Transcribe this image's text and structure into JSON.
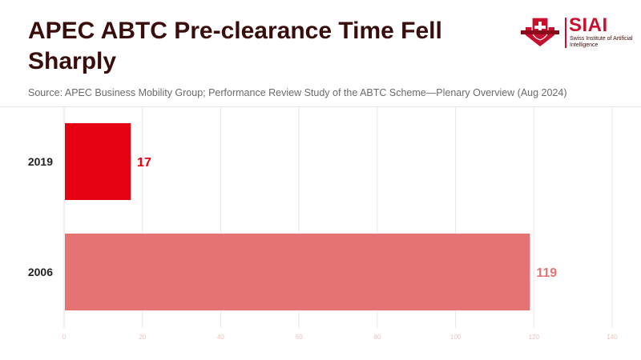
{
  "title": "APEC ABTC Pre-clearance Time Fell Sharply",
  "subtitle": "Source: APEC Business Mobility Group; Performance Review Study of the ABTC Scheme—Plenary Overview (Aug 2024)",
  "logo": {
    "name": "SIAI",
    "tagline": "Swiss Institute of Artificial Intelligence"
  },
  "colors": {
    "title": "#3a0d0d",
    "bar_2019": "#e50012",
    "bar_2006": "#e57373",
    "grid": "#f0e4e4",
    "brand": "#c8102e"
  },
  "chart_data": {
    "type": "bar",
    "orientation": "horizontal",
    "categories": [
      "2019",
      "2006"
    ],
    "values": [
      17,
      119
    ],
    "xlim": [
      0,
      140
    ],
    "xticks": [
      0,
      20,
      40,
      60,
      80,
      100,
      120,
      140
    ],
    "bar_colors": [
      "#e50012",
      "#e57373"
    ],
    "grid": true,
    "data_labels": true
  }
}
